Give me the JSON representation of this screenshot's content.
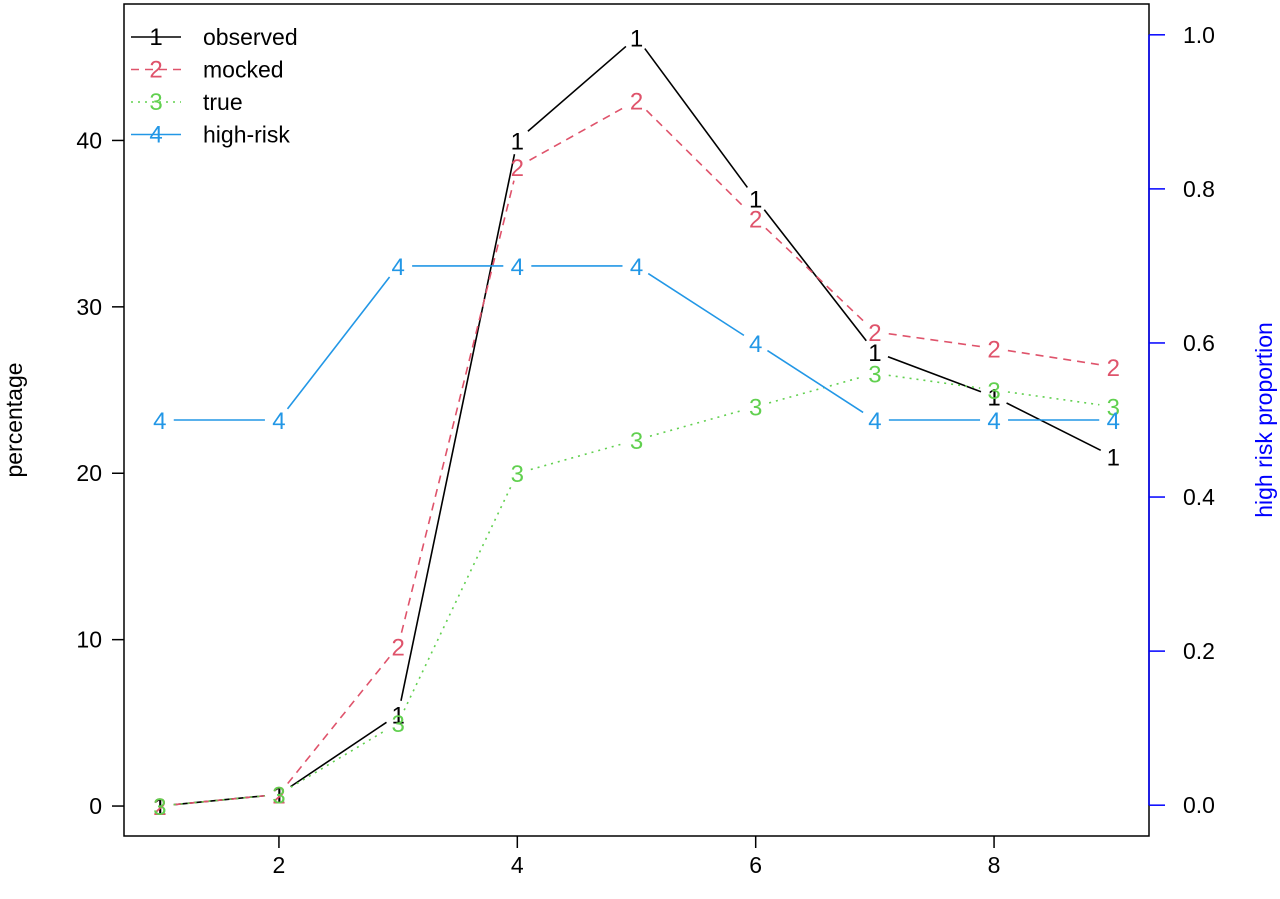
{
  "chart_data": {
    "type": "line",
    "x": [
      1,
      2,
      3,
      4,
      5,
      6,
      7,
      8,
      9
    ],
    "xlabel": "",
    "xlim": [
      0.7,
      9.3
    ],
    "xticks": [
      2,
      4,
      6,
      8
    ],
    "ylabel": "percentage",
    "ylim": [
      -1.8,
      48.2
    ],
    "yticks": [
      0,
      10,
      20,
      30,
      40
    ],
    "y2label": "high risk proportion",
    "y2lim": [
      -0.04,
      1.04
    ],
    "y2ticks": [
      0.0,
      0.2,
      0.4,
      0.6,
      0.8,
      1.0
    ],
    "y2tick_labels": [
      "0.0",
      "0.2",
      "0.4",
      "0.6",
      "0.8",
      "1.0"
    ],
    "legend_position": "top-left",
    "series": [
      {
        "name": "observed",
        "marker": "1",
        "axis": "left",
        "color": "#000000",
        "dash": "none",
        "values": [
          0,
          0.7,
          5.5,
          40,
          46.2,
          36.5,
          27.3,
          24.6,
          21
        ]
      },
      {
        "name": "mocked",
        "marker": "2",
        "axis": "left",
        "color": "#df536b",
        "dash": "8,6",
        "values": [
          0,
          0.7,
          9.6,
          38.4,
          42.4,
          35.3,
          28.5,
          27.5,
          26.4
        ]
      },
      {
        "name": "true",
        "marker": "3",
        "axis": "left",
        "color": "#61d04f",
        "dash": "2,5",
        "values": [
          0,
          0.7,
          5,
          20,
          22,
          24,
          26,
          25,
          24
        ]
      },
      {
        "name": "high-risk",
        "marker": "4",
        "axis": "right",
        "color": "#2297e6",
        "dash": "none",
        "values": [
          0.5,
          0.5,
          0.7,
          0.7,
          0.7,
          0.6,
          0.5,
          0.5,
          0.5
        ]
      }
    ],
    "colors": {
      "axis": "#000000",
      "right_axis": "#0000ff",
      "right_label": "#0000ff"
    }
  }
}
